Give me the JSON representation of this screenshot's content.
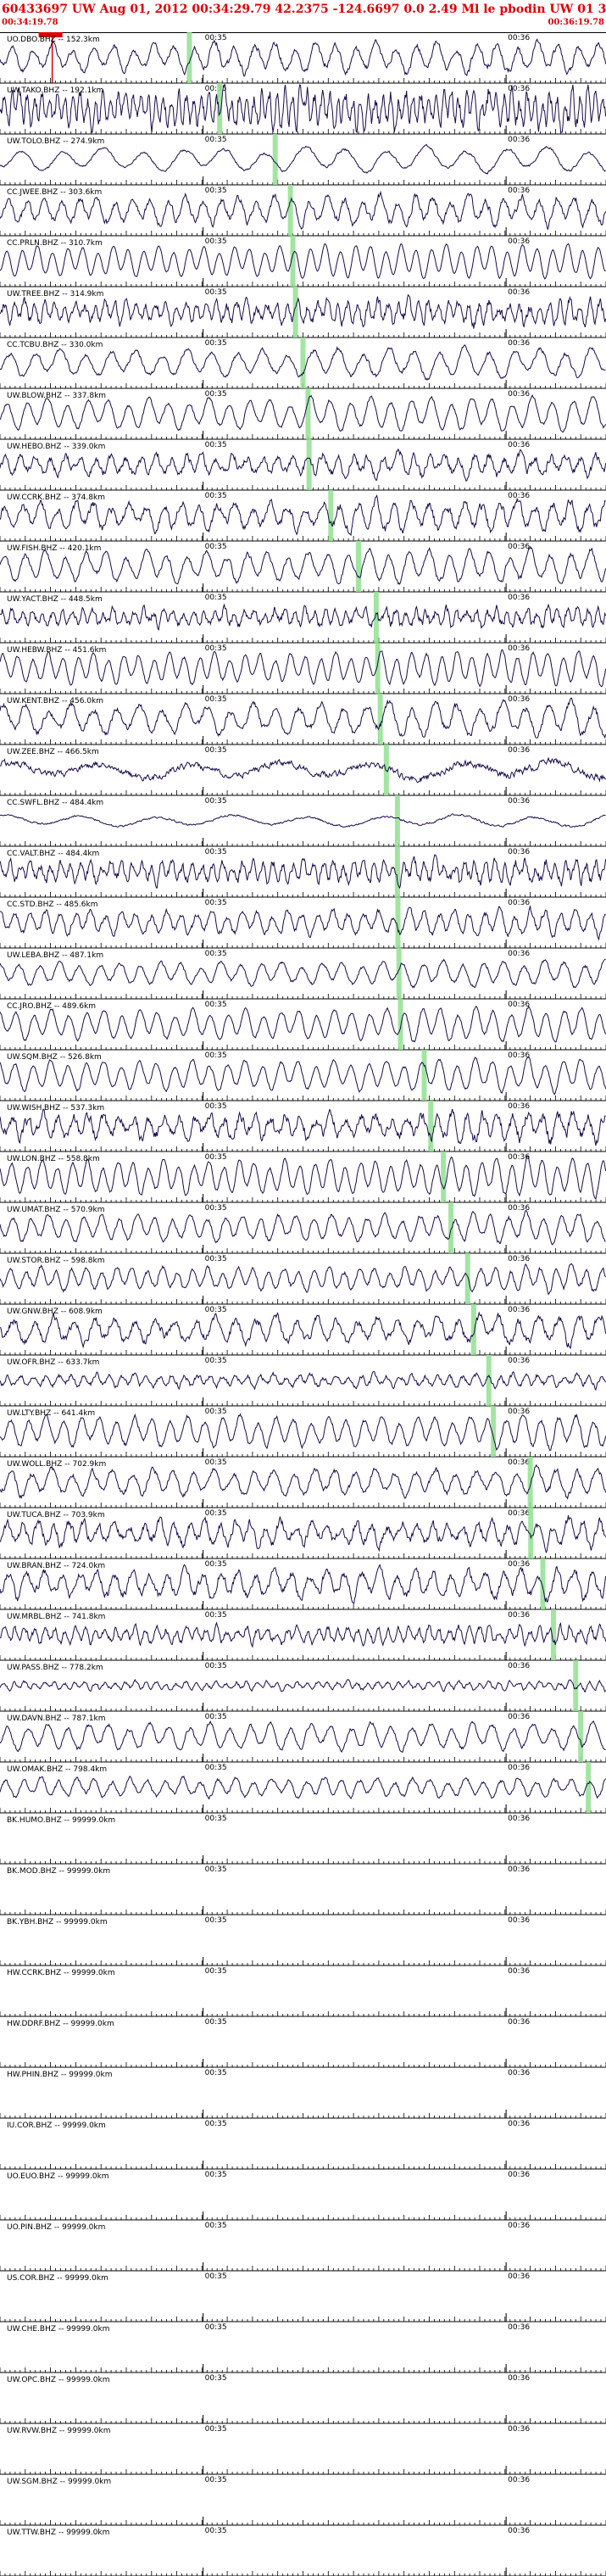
{
  "header": {
    "title": "60433697 UW Aug 01, 2012 00:34:29.79   42.2375 -124.6697  0.0 2.49 Ml le pbodin UW 01   3",
    "start_time": "00:34:19.78",
    "end_time": "00:36:19.78"
  },
  "colors": {
    "trace": "#1a0a4a",
    "pick": "#90e090",
    "marker": "#dd0000",
    "axis": "#000000"
  },
  "chart_data": {
    "type": "line",
    "title": "",
    "xlabel": "",
    "ylabel": "",
    "time_window_seconds": [
      0,
      120
    ],
    "minute_tick_labels": [
      "00:35",
      "00:36"
    ],
    "minute_tick_seconds": [
      40.22,
      100.22
    ],
    "origin_seconds": 10.01,
    "channels": [
      {
        "label": "UO.DBO.BHZ -- 152.3km",
        "pick": 37.5,
        "noise": 0.4,
        "period": 4.0,
        "amp": 0.7
      },
      {
        "label": "UW.TAKO.BHZ -- 192.1km",
        "pick": 43.5,
        "noise": 1.0,
        "period": 1.5,
        "amp": 0.8
      },
      {
        "label": "UW.TOLO.BHZ -- 274.9km",
        "pick": 54.5,
        "noise": 0.2,
        "period": 8.0,
        "amp": 0.6
      },
      {
        "label": "CC.JWEE.BHZ -- 303.6km",
        "pick": 57.5,
        "noise": 0.5,
        "period": 3.5,
        "amp": 0.7
      },
      {
        "label": "CC.PRLN.BHZ -- 310.7km",
        "pick": 58.0,
        "noise": 0.1,
        "period": 3.0,
        "amp": 0.8
      },
      {
        "label": "UW.TREE.BHZ -- 314.9km",
        "pick": 58.5,
        "noise": 1.0,
        "period": 2.0,
        "amp": 0.5
      },
      {
        "label": "CC.TCBU.BHZ -- 330.0km",
        "pick": 60.0,
        "noise": 0.3,
        "period": 5.0,
        "amp": 0.7
      },
      {
        "label": "UW.BLOW.BHZ -- 337.8km",
        "pick": 61.0,
        "noise": 0.2,
        "period": 4.0,
        "amp": 0.8
      },
      {
        "label": "UW.HEBO.BHZ -- 339.0km",
        "pick": 61.2,
        "noise": 0.8,
        "period": 3.0,
        "amp": 0.5
      },
      {
        "label": "UW.CCRK.BHZ -- 374.8km",
        "pick": 65.5,
        "noise": 0.6,
        "period": 3.5,
        "amp": 0.7
      },
      {
        "label": "UW.FISH.BHZ -- 420.1km",
        "pick": 71.0,
        "noise": 0.3,
        "period": 4.0,
        "amp": 0.8
      },
      {
        "label": "UW.YACT.BHZ -- 448.5km",
        "pick": 74.5,
        "noise": 1.1,
        "period": 2.0,
        "amp": 0.4
      },
      {
        "label": "UW.HEBW.BHZ -- 451.6km",
        "pick": 74.8,
        "noise": 0.2,
        "period": 3.0,
        "amp": 0.8
      },
      {
        "label": "UW.KENT.BHZ -- 456.0km",
        "pick": 75.3,
        "noise": 0.4,
        "period": 4.5,
        "amp": 0.8
      },
      {
        "label": "UW.ZEE.BHZ -- 466.5km",
        "pick": 76.5,
        "noise": 0.8,
        "period": 18.0,
        "amp": 0.4
      },
      {
        "label": "CC.SWFL.BHZ -- 484.4km",
        "pick": 78.7,
        "noise": 0.3,
        "period": 15.0,
        "amp": 0.3
      },
      {
        "label": "CC.VALT.BHZ -- 484.4km",
        "pick": 78.7,
        "noise": 1.0,
        "period": 2.0,
        "amp": 0.5
      },
      {
        "label": "CC.STD.BHZ -- 485.6km",
        "pick": 78.8,
        "noise": 0.5,
        "period": 3.0,
        "amp": 0.6
      },
      {
        "label": "UW.LEBA.BHZ -- 487.1km",
        "pick": 79.0,
        "noise": 0.3,
        "period": 4.0,
        "amp": 0.6
      },
      {
        "label": "CC.JRO.BHZ -- 489.6km",
        "pick": 79.3,
        "noise": 0.2,
        "period": 3.5,
        "amp": 0.8
      },
      {
        "label": "UW.SQM.BHZ -- 526.8km",
        "pick": 84.0,
        "noise": 0.2,
        "period": 3.5,
        "amp": 0.8
      },
      {
        "label": "UW.WISH.BHZ -- 537.3km",
        "pick": 85.3,
        "noise": 0.9,
        "period": 3.0,
        "amp": 0.6
      },
      {
        "label": "UW.LON.BHZ -- 558.8km",
        "pick": 87.8,
        "noise": 0.2,
        "period": 3.0,
        "amp": 0.9
      },
      {
        "label": "UW.UMAT.BHZ -- 570.9km",
        "pick": 89.3,
        "noise": 0.3,
        "period": 3.5,
        "amp": 0.7
      },
      {
        "label": "UW.STOR.BHZ -- 598.8km",
        "pick": 92.6,
        "noise": 0.4,
        "period": 3.0,
        "amp": 0.6
      },
      {
        "label": "UW.GNW.BHZ -- 608.9km",
        "pick": 93.8,
        "noise": 0.6,
        "period": 4.0,
        "amp": 0.7
      },
      {
        "label": "UW.OFR.BHZ -- 633.7km",
        "pick": 96.8,
        "noise": 0.9,
        "period": 2.5,
        "amp": 0.3
      },
      {
        "label": "UW.LTY.BHZ -- 641.4km",
        "pick": 97.7,
        "noise": 0.3,
        "period": 3.5,
        "amp": 0.8
      },
      {
        "label": "UW.WOLL.BHZ -- 702.9km",
        "pick": 105.0,
        "noise": 0.4,
        "period": 4.0,
        "amp": 0.7
      },
      {
        "label": "UW.TUCA.BHZ -- 703.9km",
        "pick": 105.1,
        "noise": 0.8,
        "period": 3.0,
        "amp": 0.6
      },
      {
        "label": "UW.BRAN.BHZ -- 724.0km",
        "pick": 107.5,
        "noise": 0.6,
        "period": 3.5,
        "amp": 0.7
      },
      {
        "label": "UW.MRBL.BHZ -- 741.8km",
        "pick": 109.6,
        "noise": 0.9,
        "period": 2.0,
        "amp": 0.4
      },
      {
        "label": "UW.PASS.BHZ -- 778.2km",
        "pick": 114.0,
        "noise": 0.9,
        "period": 2.0,
        "amp": 0.2
      },
      {
        "label": "UW.DAVN.BHZ -- 787.1km",
        "pick": 115.0,
        "noise": 0.3,
        "period": 4.0,
        "amp": 0.7
      },
      {
        "label": "UW.OMAK.BHZ -- 798.4km",
        "pick": 116.5,
        "noise": 0.4,
        "period": 3.5,
        "amp": 0.5
      },
      {
        "label": "BK.HUMO.BHZ -- 99999.0km",
        "pick": null,
        "noise": 0,
        "period": 0,
        "amp": 0
      },
      {
        "label": "BK.MOD.BHZ -- 99999.0km",
        "pick": null,
        "noise": 0,
        "period": 0,
        "amp": 0
      },
      {
        "label": "BK.YBH.BHZ -- 99999.0km",
        "pick": null,
        "noise": 0,
        "period": 0,
        "amp": 0
      },
      {
        "label": "HW.CCRK.BHZ -- 99999.0km",
        "pick": null,
        "noise": 0,
        "period": 0,
        "amp": 0
      },
      {
        "label": "HW.DDRF.BHZ -- 99999.0km",
        "pick": null,
        "noise": 0,
        "period": 0,
        "amp": 0
      },
      {
        "label": "HW.PHIN.BHZ -- 99999.0km",
        "pick": null,
        "noise": 0,
        "period": 0,
        "amp": 0
      },
      {
        "label": "IU.COR.BHZ -- 99999.0km",
        "pick": null,
        "noise": 0,
        "period": 0,
        "amp": 0
      },
      {
        "label": "UO.EUO.BHZ -- 99999.0km",
        "pick": null,
        "noise": 0,
        "period": 0,
        "amp": 0
      },
      {
        "label": "UO.PIN.BHZ -- 99999.0km",
        "pick": null,
        "noise": 0,
        "period": 0,
        "amp": 0
      },
      {
        "label": "US.COR.BHZ -- 99999.0km",
        "pick": null,
        "noise": 0,
        "period": 0,
        "amp": 0
      },
      {
        "label": "UW.CHE.BHZ -- 99999.0km",
        "pick": null,
        "noise": 0,
        "period": 0,
        "amp": 0
      },
      {
        "label": "UW.OPC.BHZ -- 99999.0km",
        "pick": null,
        "noise": 0,
        "period": 0,
        "amp": 0
      },
      {
        "label": "UW.RVW.BHZ -- 99999.0km",
        "pick": null,
        "noise": 0,
        "period": 0,
        "amp": 0
      },
      {
        "label": "UW.SGM.BHZ -- 99999.0km",
        "pick": null,
        "noise": 0,
        "period": 0,
        "amp": 0
      },
      {
        "label": "UW.TTW.BHZ -- 99999.0km",
        "pick": null,
        "noise": 0,
        "period": 0,
        "amp": 0
      }
    ]
  }
}
